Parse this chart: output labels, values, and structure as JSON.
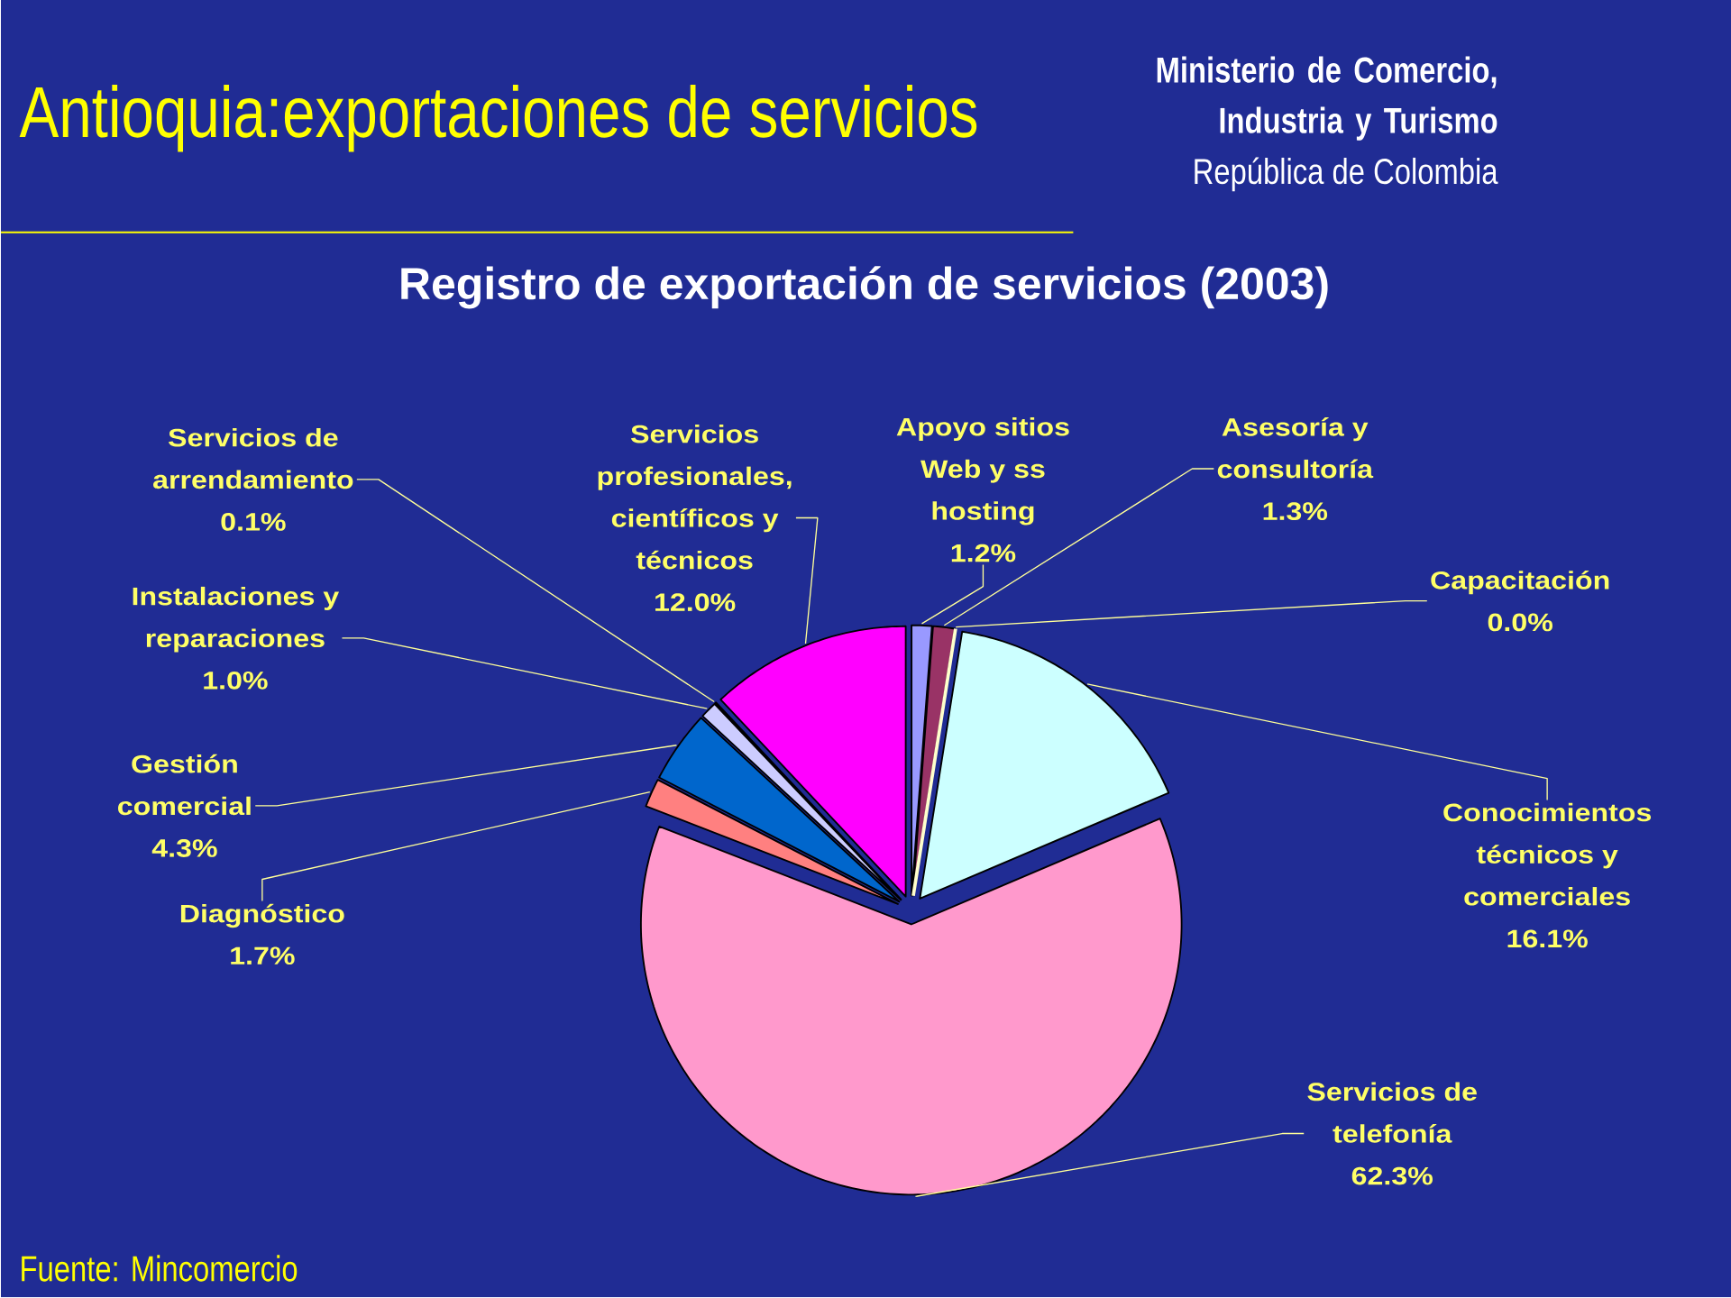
{
  "chart_data": {
    "type": "pie",
    "title": "Antioquia:exportaciones de servicios",
    "subtitle": "Registro de exportación de servicios (2003)",
    "categories": [
      "Apoyo sitios Web y ss hosting",
      "Asesoría y consultoría",
      "Capacitación",
      "Conocimientos técnicos y comerciales",
      "Servicios de telefonía",
      "Diagnóstico",
      "Gestión comercial",
      "Instalaciones y reparaciones",
      "Servicios de arrendamiento",
      "Servicios profesionales, científicos y técnicos"
    ],
    "values": [
      1.2,
      1.3,
      0.0,
      16.1,
      62.3,
      1.7,
      4.3,
      1.0,
      0.1,
      12.0
    ],
    "colors": [
      "#9999ff",
      "#993366",
      "#ffffcc",
      "#ccffff",
      "#ff99cc",
      "#ff8080",
      "#0066cc",
      "#ccccff",
      "#000080",
      "#ff00ff"
    ],
    "value_labels": [
      "1.2%",
      "1.3%",
      "0.0%",
      "16.1%",
      "62.3%",
      "1.7%",
      "4.3%",
      "1.0%",
      "0.1%",
      "12.0%"
    ],
    "annotations": [
      "Ministerio de Comercio, Industria y Turismo",
      "República de Colombia",
      "Fuente: Mincomercio"
    ]
  }
}
